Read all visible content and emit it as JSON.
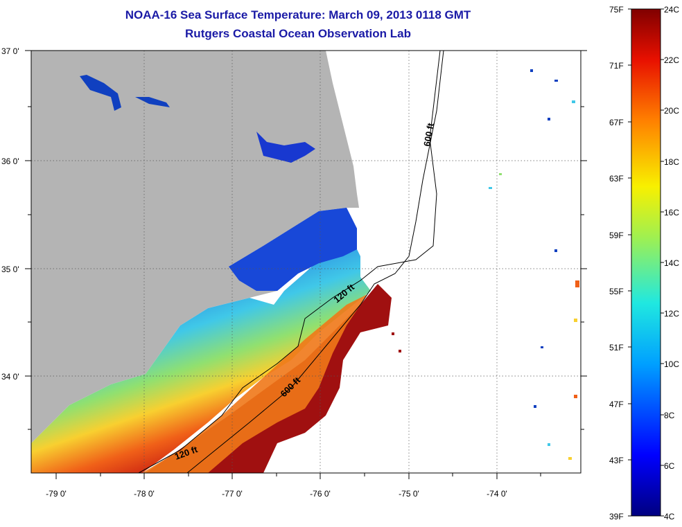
{
  "header": {
    "title": "NOAA-16 Sea Surface Temperature:  March 09, 2013 0118 GMT",
    "subtitle": "Rutgers Coastal Ocean Observation Lab"
  },
  "map": {
    "lat_labels": [
      "37 0'",
      "36 0'",
      "35 0'",
      "34 0'"
    ],
    "lon_labels": [
      "-79 0'",
      "-78 0'",
      "-77 0'",
      "-76 0'",
      "-75 0'",
      "-74 0'"
    ],
    "lat_values": [
      37,
      36,
      35,
      34
    ],
    "lon_values": [
      -79,
      -78,
      -77,
      -76,
      -75,
      -74
    ],
    "extent": {
      "lon_min": -79.3,
      "lon_max": -73.0,
      "lat_min": 33.05,
      "lat_max": 37.0
    },
    "contours": {
      "shelf_120_north": "120 ft",
      "shelf_120_south": "120 ft",
      "slope_600_north": "600 ft",
      "slope_600_south": "600 ft"
    },
    "colors": {
      "land": "#b4b4b4",
      "cold": "#1030c8",
      "mid": "#40c8e8",
      "warm": "#f0a020",
      "hot": "#8b0f0f"
    }
  },
  "colorbar": {
    "f_labels": [
      "75F",
      "71F",
      "67F",
      "63F",
      "59F",
      "55F",
      "51F",
      "47F",
      "43F",
      "39F"
    ],
    "c_labels": [
      "24C",
      "22C",
      "20C",
      "18C",
      "16C",
      "14C",
      "12C",
      "10C",
      "8C",
      "6C",
      "4C"
    ],
    "range_c": [
      4,
      24
    ]
  }
}
